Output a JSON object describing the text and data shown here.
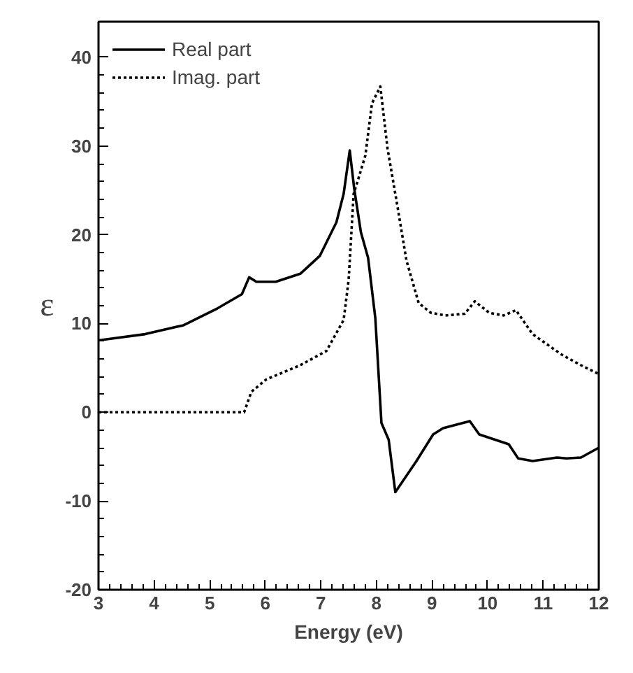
{
  "chart_data": {
    "type": "line",
    "xlabel": "Energy (eV)",
    "ylabel": "ε",
    "xlim": [
      3,
      12
    ],
    "ylim": [
      -20,
      44
    ],
    "xticks": [
      3,
      4,
      5,
      6,
      7,
      8,
      9,
      10,
      11,
      12
    ],
    "yticks": [
      -20,
      -10,
      0,
      10,
      20,
      30,
      40
    ],
    "grid": false,
    "legend": "top left",
    "marker": "none",
    "series": [
      {
        "name": "Real part",
        "color": "#000000",
        "line_style": "solid",
        "x": [
          3,
          3.84,
          4.53,
          5.14,
          5.58,
          5.71,
          5.84,
          6.19,
          6.63,
          6.98,
          7.28,
          7.41,
          7.52,
          7.6,
          7.72,
          7.85,
          7.98,
          8.09,
          8.22,
          8.34,
          8.72,
          9.02,
          9.2,
          9.68,
          9.85,
          10.38,
          10.55,
          10.81,
          11.25,
          11.42,
          11.68,
          12
        ],
        "values": [
          8.1,
          8.8,
          9.8,
          11.7,
          13.3,
          15.2,
          14.7,
          14.7,
          15.6,
          17.6,
          21.4,
          24.6,
          29.5,
          25.2,
          20.3,
          17.4,
          10.6,
          -1.2,
          -3.1,
          -9.0,
          -5.5,
          -2.5,
          -1.8,
          -1.0,
          -2.5,
          -3.6,
          -5.2,
          -5.5,
          -5.1,
          -5.2,
          -5.1,
          -4.0
        ]
      },
      {
        "name": "Imag. part",
        "color": "#000000",
        "line_style": "dotted",
        "x": [
          3,
          5.62,
          5.75,
          6.02,
          6.63,
          7.1,
          7.41,
          7.5,
          7.59,
          7.67,
          7.8,
          7.92,
          8.07,
          8.2,
          8.37,
          8.54,
          8.76,
          8.98,
          9.24,
          9.59,
          9.77,
          10.03,
          10.29,
          10.51,
          10.81,
          11.33,
          11.68,
          12
        ],
        "values": [
          0,
          0,
          2.3,
          3.7,
          5.3,
          6.9,
          10.4,
          14.9,
          24.6,
          26.2,
          28.9,
          34.8,
          36.7,
          29.7,
          23.5,
          17.1,
          12.3,
          11.2,
          10.9,
          11.1,
          12.5,
          11.2,
          10.9,
          11.5,
          8.8,
          6.5,
          5.3,
          4.3
        ]
      }
    ]
  }
}
